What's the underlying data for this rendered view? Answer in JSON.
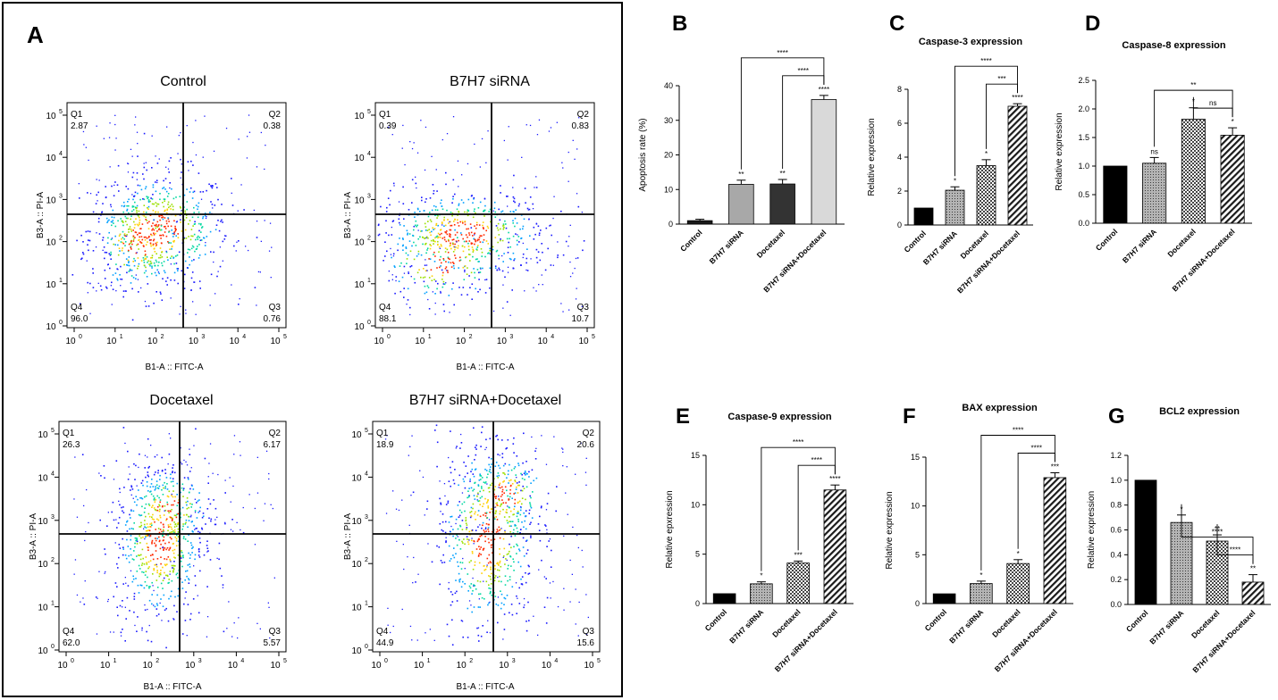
{
  "chart_data": [
    {
      "panel": "A",
      "type": "scatter",
      "subplots": [
        {
          "title": "Control",
          "xlabel": "B1-A :: FITC-A",
          "ylabel": "B3-A :: PI-A",
          "quadrants": {
            "Q1": "2.87",
            "Q2": "0.38",
            "Q3": "0.76",
            "Q4": "96.0"
          }
        },
        {
          "title": "B7H7 siRNA",
          "xlabel": "B1-A :: FITC-A",
          "ylabel": "B3-A :: PI-A",
          "quadrants": {
            "Q1": "0.39",
            "Q2": "0.83",
            "Q3": "10.7",
            "Q4": "88.1"
          }
        },
        {
          "title": "Docetaxel",
          "xlabel": "B1-A :: FITC-A",
          "ylabel": "B3-A :: PI-A",
          "quadrants": {
            "Q1": "26.3",
            "Q2": "6.17",
            "Q3": "5.57",
            "Q4": "62.0"
          }
        },
        {
          "title": "B7H7 siRNA+Docetaxel",
          "xlabel": "B1-A :: FITC-A",
          "ylabel": "B3-A :: PI-A",
          "quadrants": {
            "Q1": "18.9",
            "Q2": "20.6",
            "Q3": "15.6",
            "Q4": "44.9"
          }
        }
      ],
      "x_scale": "log",
      "y_scale": "log",
      "tick_labels": [
        "10",
        "10",
        "10",
        "10",
        "10",
        "10"
      ],
      "tick_exponents": [
        "0",
        "1",
        "2",
        "3",
        "4",
        "5"
      ]
    },
    {
      "panel": "B",
      "type": "bar",
      "title": "",
      "ylabel": "Apoptosis rate (%)",
      "categories": [
        "Control",
        "B7H7 siRNA",
        "Docetaxel",
        "B7H7 siRNA+Docetaxel"
      ],
      "values": [
        1.0,
        11.5,
        11.6,
        36.0
      ],
      "errors": [
        0.4,
        1.2,
        1.3,
        1.2
      ],
      "ylim": [
        0,
        40
      ],
      "yticks": [
        "0",
        "10",
        "20",
        "30",
        "40"
      ],
      "stars": [
        "",
        "**",
        "**",
        "****"
      ],
      "brackets": [
        {
          "from": 2,
          "to": 3,
          "label": "****"
        },
        {
          "from": 1,
          "to": 3,
          "label": "****"
        }
      ]
    },
    {
      "panel": "C",
      "type": "bar",
      "title": "Caspase-3 expression",
      "ylabel": "Relative expression",
      "categories": [
        "Control",
        "B7H7 siRNA",
        "Docetaxel",
        "B7H7 siRNA+Docetaxel"
      ],
      "values": [
        1.0,
        2.05,
        3.5,
        7.0
      ],
      "errors": [
        0,
        0.2,
        0.35,
        0.15
      ],
      "ylim": [
        0,
        8
      ],
      "yticks": [
        "0",
        "2",
        "4",
        "6",
        "8"
      ],
      "stars": [
        "",
        "*",
        "*",
        "****"
      ],
      "brackets": [
        {
          "from": 2,
          "to": 3,
          "label": "***"
        },
        {
          "from": 1,
          "to": 3,
          "label": "****"
        }
      ]
    },
    {
      "panel": "D",
      "type": "bar",
      "title": "Caspase-8 expression",
      "ylabel": "Relative expression",
      "categories": [
        "Control",
        "B7H7 siRNA",
        "Docetaxel",
        "B7H7 siRNA+Docetaxel"
      ],
      "values": [
        1.0,
        1.05,
        1.82,
        1.54
      ],
      "errors": [
        0,
        0.1,
        0.2,
        0.13
      ],
      "ylim": [
        0,
        2.5
      ],
      "yticks": [
        "0.0",
        "0.5",
        "1.0",
        "1.5",
        "2.0",
        "2.5"
      ],
      "stars": [
        "",
        "ns",
        "*",
        "*"
      ],
      "brackets": [
        {
          "from": 2,
          "to": 3,
          "label": "ns"
        },
        {
          "from": 1,
          "to": 3,
          "label": "**"
        }
      ]
    },
    {
      "panel": "E",
      "type": "bar",
      "title": "Caspase-9 expression",
      "ylabel": "Relative epxression",
      "categories": [
        "Control",
        "B7H7 siRNA",
        "Docetaxel",
        "B7H7 siRNA+Docetaxel"
      ],
      "values": [
        1.0,
        2.0,
        4.1,
        11.5
      ],
      "errors": [
        0,
        0.2,
        0.2,
        0.5
      ],
      "ylim": [
        0,
        15
      ],
      "yticks": [
        "0",
        "5",
        "10",
        "15"
      ],
      "stars": [
        "",
        "*",
        "***",
        "****"
      ],
      "brackets": [
        {
          "from": 2,
          "to": 3,
          "label": "****"
        },
        {
          "from": 1,
          "to": 3,
          "label": "****"
        }
      ]
    },
    {
      "panel": "F",
      "type": "bar",
      "title": "BAX expression",
      "ylabel": "Relative expression",
      "categories": [
        "Control",
        "B7H7 siRNA",
        "Docetaxel",
        "B7H7 siRNA+Docetaxel"
      ],
      "values": [
        1.0,
        2.05,
        4.1,
        12.9
      ],
      "errors": [
        0,
        0.25,
        0.4,
        0.5
      ],
      "ylim": [
        0,
        15
      ],
      "yticks": [
        "0",
        "5",
        "10",
        "15"
      ],
      "stars": [
        "",
        "*",
        "*",
        "***"
      ],
      "brackets": [
        {
          "from": 2,
          "to": 3,
          "label": "****"
        },
        {
          "from": 1,
          "to": 3,
          "label": "****"
        }
      ]
    },
    {
      "panel": "G",
      "type": "bar",
      "title": "BCL2 expression",
      "ylabel": "Relative expression",
      "categories": [
        "Control",
        "B7H7 siRNA",
        "Docetaxel",
        "B7H7 siRNA+Docetaxel"
      ],
      "values": [
        1.0,
        0.66,
        0.51,
        0.18
      ],
      "errors": [
        0,
        0.06,
        0.05,
        0.06
      ],
      "ylim": [
        0,
        1.2
      ],
      "yticks": [
        "0.0",
        "0.2",
        "0.4",
        "0.6",
        "0.8",
        "1.0",
        "1.2"
      ],
      "stars": [
        "",
        "*",
        "**",
        "**"
      ],
      "brackets": [
        {
          "from": 2,
          "to": 3,
          "label": "****"
        },
        {
          "from": 1,
          "to": 3,
          "label": "****"
        }
      ]
    }
  ],
  "panel_labels": [
    "A",
    "B",
    "C",
    "D",
    "E",
    "F",
    "G"
  ],
  "colors": {
    "B": [
      "#1a1a1a",
      "#a8a8a8",
      "#333333",
      "#d9d9d9"
    ],
    "density": [
      "#1a1aff",
      "#00a0ff",
      "#00d8a0",
      "#9be000",
      "#ffd000",
      "#ff2a00"
    ]
  }
}
